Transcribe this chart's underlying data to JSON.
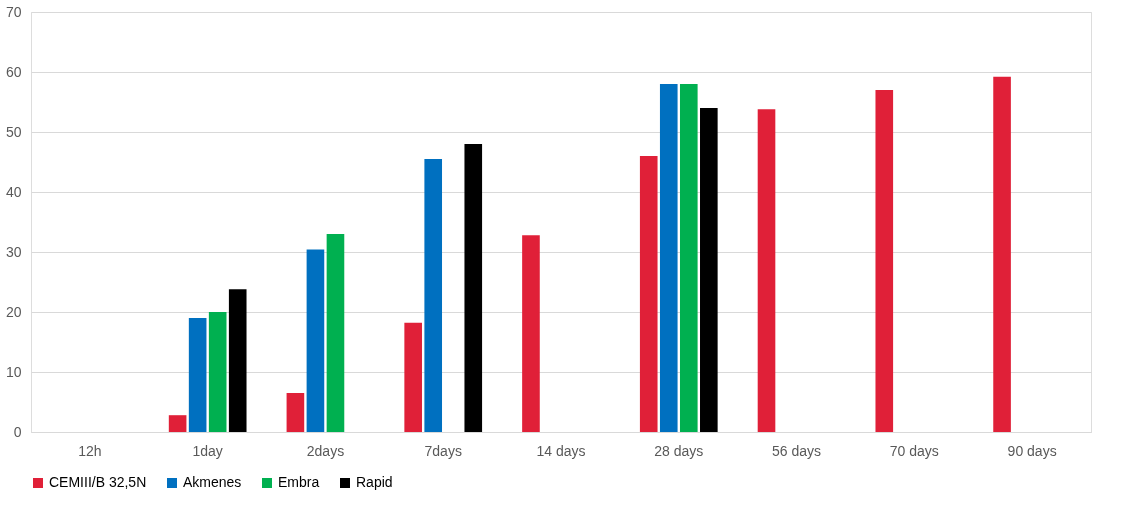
{
  "chart_data": {
    "type": "bar",
    "categories": [
      "12h",
      "1day",
      "2days",
      "7days",
      "14 days",
      "28 days",
      "56 days",
      "70 days",
      "90 days"
    ],
    "series": [
      {
        "name": "CEMIII/B 32,5N",
        "color": "#e02038",
        "values": [
          null,
          2.8,
          6.5,
          18.2,
          32.8,
          46,
          53.8,
          57,
          59.2
        ]
      },
      {
        "name": "Akmenes",
        "color": "#0070c0",
        "values": [
          null,
          19,
          30.4,
          45.5,
          null,
          58,
          null,
          null,
          null
        ]
      },
      {
        "name": "Embra",
        "color": "#00b050",
        "values": [
          null,
          20,
          33,
          null,
          null,
          58,
          null,
          null,
          null
        ]
      },
      {
        "name": "Rapid",
        "color": "#000000",
        "values": [
          null,
          23.8,
          null,
          48,
          null,
          54,
          null,
          null,
          null
        ]
      }
    ],
    "ylim": [
      0,
      70
    ],
    "yticks": [
      0,
      10,
      20,
      30,
      40,
      50,
      60,
      70
    ],
    "grid": "y",
    "legend": "bottom"
  }
}
